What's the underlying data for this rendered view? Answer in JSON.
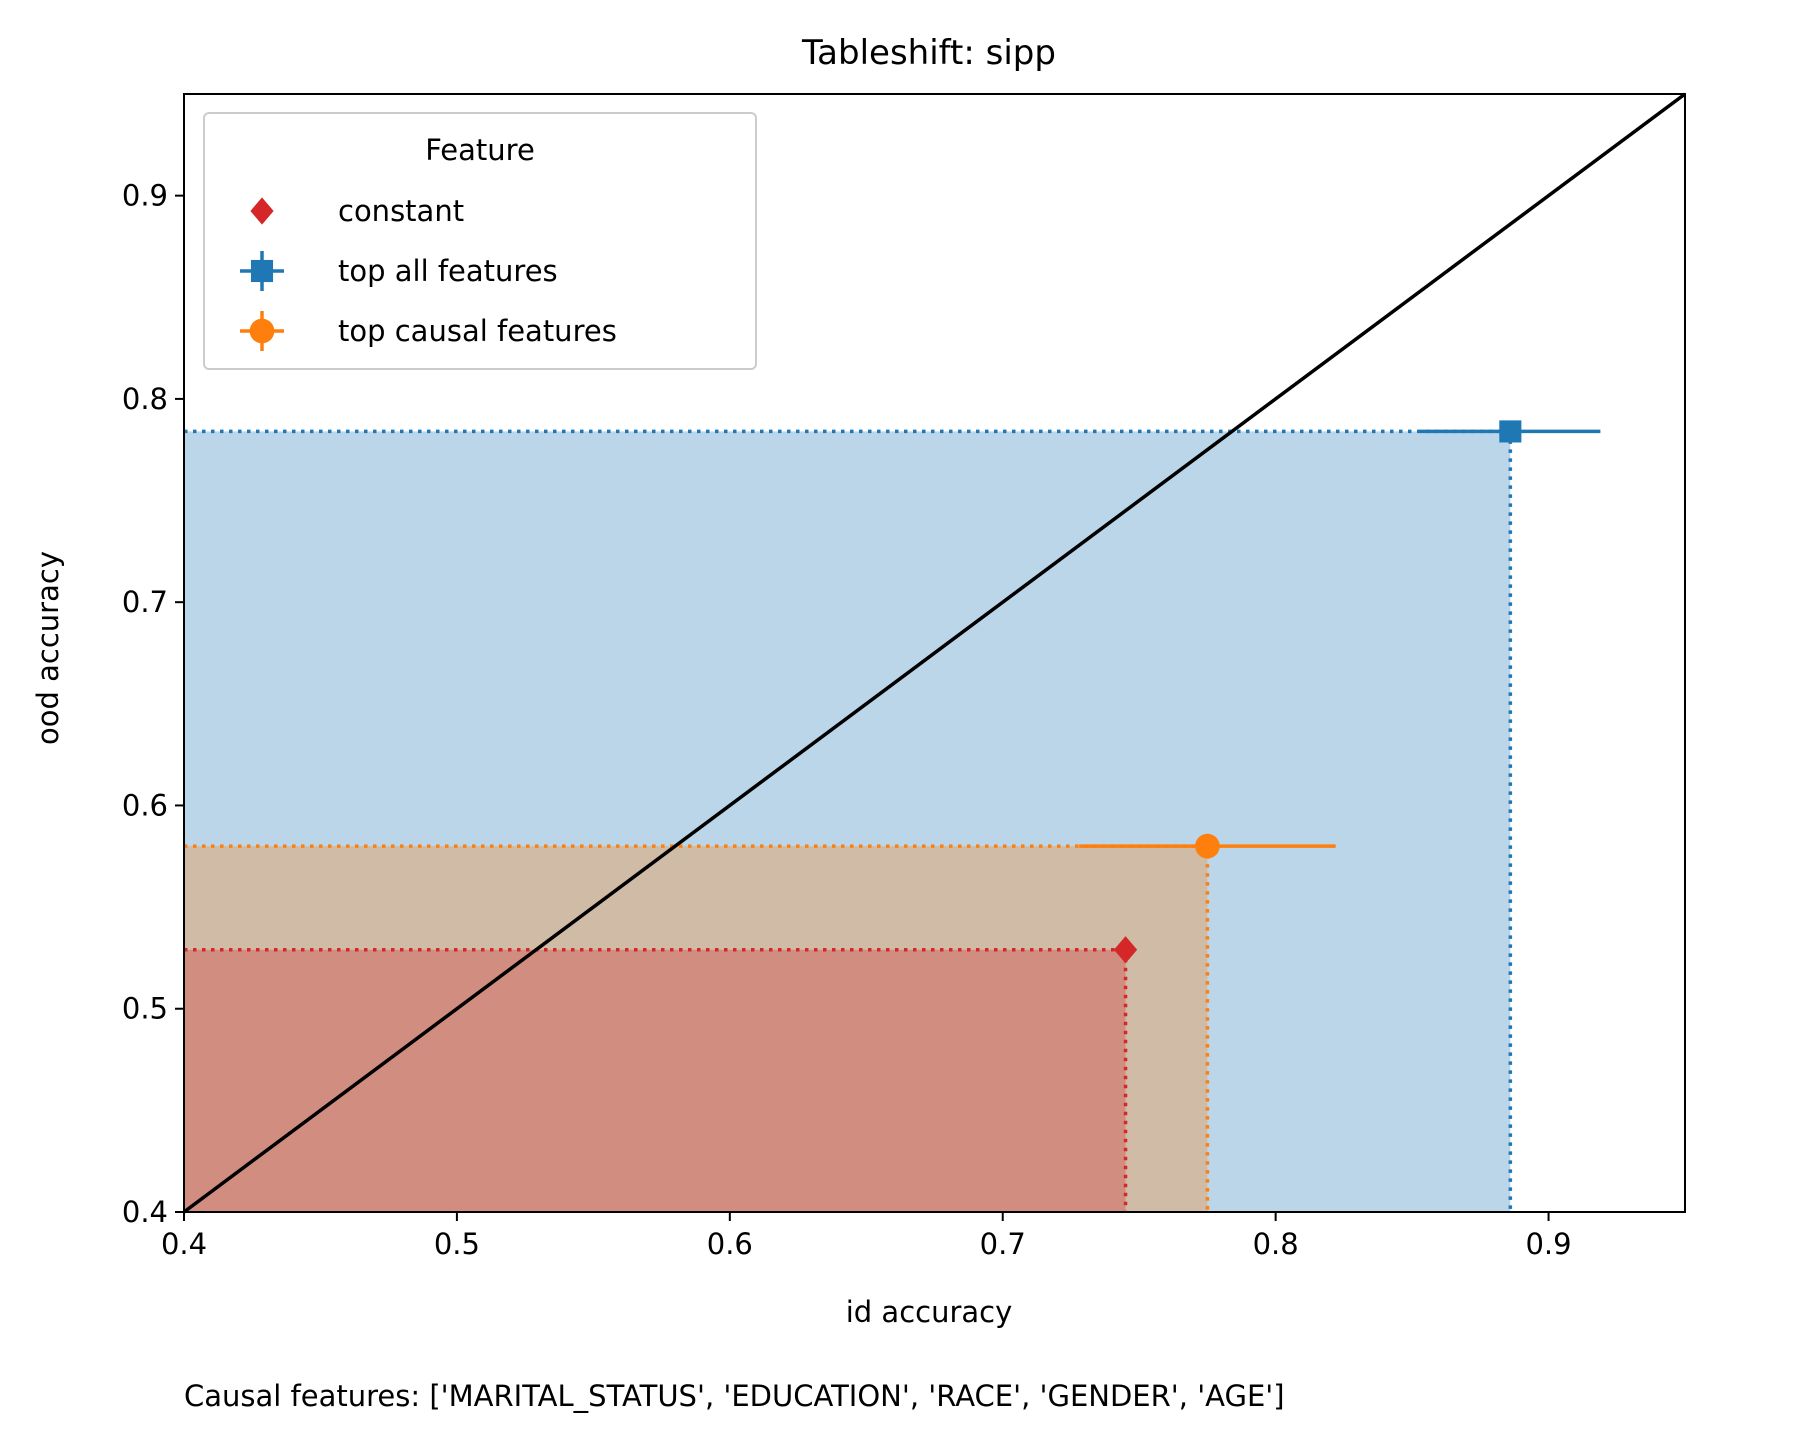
{
  "chart_data": {
    "type": "scatter",
    "title": "Tableshift: sipp",
    "xlabel": "id accuracy",
    "ylabel": "ood accuracy",
    "xlim": [
      0.4,
      0.95
    ],
    "ylim": [
      0.4,
      0.95
    ],
    "x_ticks": [
      0.4,
      0.5,
      0.6,
      0.7,
      0.8,
      0.9
    ],
    "y_ticks": [
      0.4,
      0.5,
      0.6,
      0.7,
      0.8,
      0.9
    ],
    "x_tick_labels": [
      "0.4",
      "0.5",
      "0.6",
      "0.7",
      "0.8",
      "0.9"
    ],
    "y_tick_labels": [
      "0.4",
      "0.5",
      "0.6",
      "0.7",
      "0.8",
      "0.9"
    ],
    "grid": false,
    "diagonal": {
      "from": [
        0.4,
        0.4
      ],
      "to": [
        0.95,
        0.95
      ],
      "color": "#000000"
    },
    "legend": {
      "title": "Feature",
      "position": "top-left",
      "entries": [
        "constant",
        "top all features",
        "top causal features"
      ]
    },
    "series": [
      {
        "name": "constant",
        "marker": "diamond",
        "color": "#d62728",
        "x": 0.745,
        "y": 0.529,
        "x_err": 0,
        "y_err": 0
      },
      {
        "name": "top all features",
        "marker": "square",
        "color": "#1f77b4",
        "x": 0.886,
        "y": 0.784,
        "x_err": [
          0.033,
          0.033
        ],
        "y_err": [
          0.001,
          0.001
        ]
      },
      {
        "name": "top causal features",
        "marker": "circle",
        "color": "#ff7f0e",
        "x": 0.775,
        "y": 0.58,
        "x_err": [
          0.047,
          0.047
        ],
        "y_err": [
          0.001,
          0.001
        ]
      }
    ],
    "footnote": "Causal features: ['MARITAL_STATUS', 'EDUCATION', 'RACE', 'GENDER', 'AGE']"
  }
}
